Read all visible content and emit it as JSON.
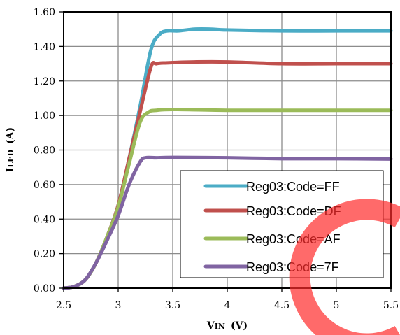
{
  "chart_data": {
    "type": "line",
    "title": "",
    "xlabel": {
      "main": "V",
      "sub": "IN",
      "unit": "(V)"
    },
    "ylabel": {
      "main": "I",
      "sub": "LED",
      "unit": "(A)"
    },
    "xlim": [
      2.5,
      5.5
    ],
    "ylim": [
      0,
      1.6
    ],
    "x_ticks": [
      "2.5",
      "3",
      "3.5",
      "4",
      "4.5",
      "5",
      "5.5"
    ],
    "y_ticks": [
      "0.00",
      "0.20",
      "0.40",
      "0.60",
      "0.80",
      "1.00",
      "1.20",
      "1.40",
      "1.60"
    ],
    "grid": true,
    "legend_position": "bottom-right",
    "series": [
      {
        "name": "Reg03:Code=FF",
        "color": "#4BACC6",
        "points": [
          [
            2.5,
            0.0
          ],
          [
            2.6,
            0.01
          ],
          [
            2.7,
            0.05
          ],
          [
            2.8,
            0.15
          ],
          [
            2.9,
            0.3
          ],
          [
            3.0,
            0.48
          ],
          [
            3.1,
            0.75
          ],
          [
            3.2,
            1.05
          ],
          [
            3.3,
            1.38
          ],
          [
            3.38,
            1.47
          ],
          [
            3.45,
            1.49
          ],
          [
            3.55,
            1.49
          ],
          [
            3.7,
            1.5
          ],
          [
            3.85,
            1.5
          ],
          [
            4.0,
            1.495
          ],
          [
            4.5,
            1.49
          ],
          [
            5.0,
            1.49
          ],
          [
            5.5,
            1.49
          ]
        ]
      },
      {
        "name": "Reg03:Code=DF",
        "color": "#C0504D",
        "points": [
          [
            2.5,
            0.0
          ],
          [
            2.6,
            0.01
          ],
          [
            2.7,
            0.05
          ],
          [
            2.8,
            0.15
          ],
          [
            2.9,
            0.3
          ],
          [
            3.0,
            0.48
          ],
          [
            3.1,
            0.75
          ],
          [
            3.2,
            1.02
          ],
          [
            3.3,
            1.28
          ],
          [
            3.35,
            1.3
          ],
          [
            3.45,
            1.305
          ],
          [
            3.7,
            1.31
          ],
          [
            4.0,
            1.31
          ],
          [
            4.5,
            1.3
          ],
          [
            5.0,
            1.3
          ],
          [
            5.5,
            1.3
          ]
        ]
      },
      {
        "name": "Reg03:Code=AF",
        "color": "#9BBB59",
        "points": [
          [
            2.5,
            0.0
          ],
          [
            2.6,
            0.01
          ],
          [
            2.7,
            0.05
          ],
          [
            2.8,
            0.15
          ],
          [
            2.9,
            0.3
          ],
          [
            3.0,
            0.47
          ],
          [
            3.1,
            0.72
          ],
          [
            3.2,
            0.96
          ],
          [
            3.28,
            1.02
          ],
          [
            3.35,
            1.03
          ],
          [
            3.5,
            1.035
          ],
          [
            4.0,
            1.03
          ],
          [
            4.5,
            1.03
          ],
          [
            5.0,
            1.03
          ],
          [
            5.5,
            1.03
          ]
        ]
      },
      {
        "name": "Reg03:Code=7F",
        "color": "#8064A2",
        "points": [
          [
            2.5,
            0.0
          ],
          [
            2.6,
            0.01
          ],
          [
            2.7,
            0.05
          ],
          [
            2.8,
            0.15
          ],
          [
            2.9,
            0.28
          ],
          [
            3.0,
            0.42
          ],
          [
            3.1,
            0.6
          ],
          [
            3.2,
            0.73
          ],
          [
            3.25,
            0.755
          ],
          [
            3.35,
            0.755
          ],
          [
            3.5,
            0.757
          ],
          [
            4.0,
            0.755
          ],
          [
            4.5,
            0.75
          ],
          [
            5.0,
            0.75
          ],
          [
            5.5,
            0.748
          ]
        ]
      }
    ]
  }
}
